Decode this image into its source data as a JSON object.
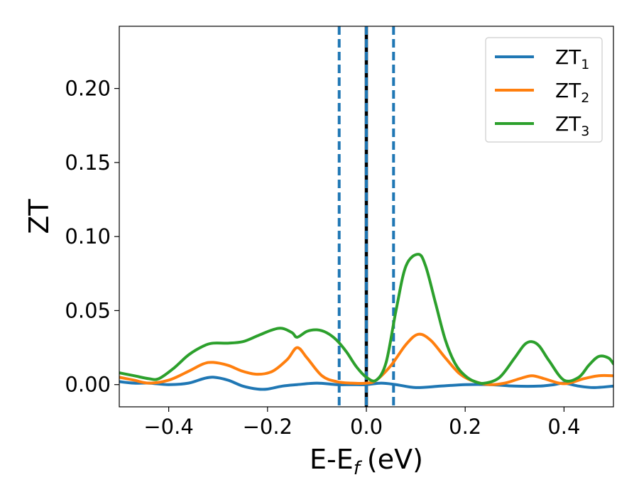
{
  "chart_data": {
    "type": "line",
    "xlabel": "E-E",
    "xlabel_sub": "f",
    "xlabel_unit": "(eV)",
    "ylabel": "ZT",
    "xlim": [
      -0.5,
      0.5
    ],
    "ylim": [
      -0.015,
      0.242
    ],
    "xticks": [
      -0.4,
      -0.2,
      0.0,
      0.2,
      0.4
    ],
    "xtick_labels": [
      "−0.4",
      "−0.2",
      "0.0",
      "0.2",
      "0.4"
    ],
    "yticks": [
      0.0,
      0.05,
      0.1,
      0.15,
      0.2
    ],
    "ytick_labels": [
      "0.00",
      "0.05",
      "0.10",
      "0.15",
      "0.20"
    ],
    "grid": false,
    "legend_position": "top-right",
    "vertical_lines": [
      {
        "x": -0.055,
        "style": "dashed",
        "color": "#1f77b4"
      },
      {
        "x": 0.055,
        "style": "dashed",
        "color": "#1f77b4"
      },
      {
        "x": 0.0,
        "style": "solid",
        "color": "#000000"
      },
      {
        "x": 0.0,
        "style": "dashed",
        "color": "#1f77b4"
      }
    ],
    "series": [
      {
        "name": "ZT",
        "sub": "1",
        "color": "#1f77b4",
        "x": [
          -0.5,
          -0.47,
          -0.44,
          -0.4,
          -0.36,
          -0.33,
          -0.31,
          -0.28,
          -0.25,
          -0.22,
          -0.2,
          -0.17,
          -0.14,
          -0.1,
          -0.06,
          -0.03,
          0.0,
          0.03,
          0.06,
          0.1,
          0.15,
          0.2,
          0.25,
          0.3,
          0.35,
          0.38,
          0.4,
          0.43,
          0.46,
          0.5
        ],
        "y": [
          0.002,
          0.001,
          0.001,
          0.0,
          0.001,
          0.004,
          0.005,
          0.003,
          -0.001,
          -0.003,
          -0.003,
          -0.001,
          0.0,
          0.001,
          0.0,
          0.0,
          0.0,
          0.001,
          0.0,
          -0.002,
          -0.001,
          0.0,
          0.0,
          -0.001,
          -0.001,
          0.0,
          0.001,
          -0.001,
          -0.002,
          -0.001
        ]
      },
      {
        "name": "ZT",
        "sub": "2",
        "color": "#ff7f0e",
        "x": [
          -0.5,
          -0.47,
          -0.44,
          -0.4,
          -0.36,
          -0.33,
          -0.31,
          -0.28,
          -0.25,
          -0.22,
          -0.19,
          -0.16,
          -0.14,
          -0.12,
          -0.09,
          -0.06,
          -0.03,
          0.0,
          0.02,
          0.05,
          0.08,
          0.105,
          0.13,
          0.16,
          0.19,
          0.22,
          0.25,
          0.28,
          0.31,
          0.335,
          0.36,
          0.39,
          0.41,
          0.44,
          0.47,
          0.5
        ],
        "y": [
          0.005,
          0.003,
          0.001,
          0.003,
          0.009,
          0.014,
          0.015,
          0.013,
          0.009,
          0.007,
          0.009,
          0.017,
          0.025,
          0.018,
          0.006,
          0.002,
          0.001,
          0.001,
          0.003,
          0.013,
          0.027,
          0.034,
          0.03,
          0.018,
          0.007,
          0.002,
          0.0,
          0.001,
          0.004,
          0.006,
          0.004,
          0.001,
          0.001,
          0.004,
          0.006,
          0.006
        ]
      },
      {
        "name": "ZT",
        "sub": "3",
        "color": "#2ca02c",
        "x": [
          -0.5,
          -0.47,
          -0.44,
          -0.42,
          -0.39,
          -0.36,
          -0.33,
          -0.31,
          -0.28,
          -0.25,
          -0.22,
          -0.19,
          -0.17,
          -0.15,
          -0.14,
          -0.12,
          -0.1,
          -0.08,
          -0.06,
          -0.04,
          -0.02,
          0.0,
          0.02,
          0.04,
          0.06,
          0.08,
          0.105,
          0.12,
          0.14,
          0.16,
          0.18,
          0.2,
          0.22,
          0.24,
          0.27,
          0.3,
          0.32,
          0.335,
          0.35,
          0.37,
          0.4,
          0.43,
          0.45,
          0.47,
          0.49,
          0.5
        ],
        "y": [
          0.008,
          0.006,
          0.004,
          0.004,
          0.011,
          0.02,
          0.026,
          0.028,
          0.028,
          0.029,
          0.033,
          0.037,
          0.038,
          0.035,
          0.032,
          0.036,
          0.037,
          0.035,
          0.03,
          0.022,
          0.012,
          0.005,
          0.003,
          0.015,
          0.05,
          0.08,
          0.088,
          0.08,
          0.055,
          0.03,
          0.014,
          0.006,
          0.002,
          0.001,
          0.005,
          0.018,
          0.027,
          0.029,
          0.026,
          0.016,
          0.003,
          0.005,
          0.013,
          0.019,
          0.018,
          0.014
        ]
      }
    ]
  }
}
